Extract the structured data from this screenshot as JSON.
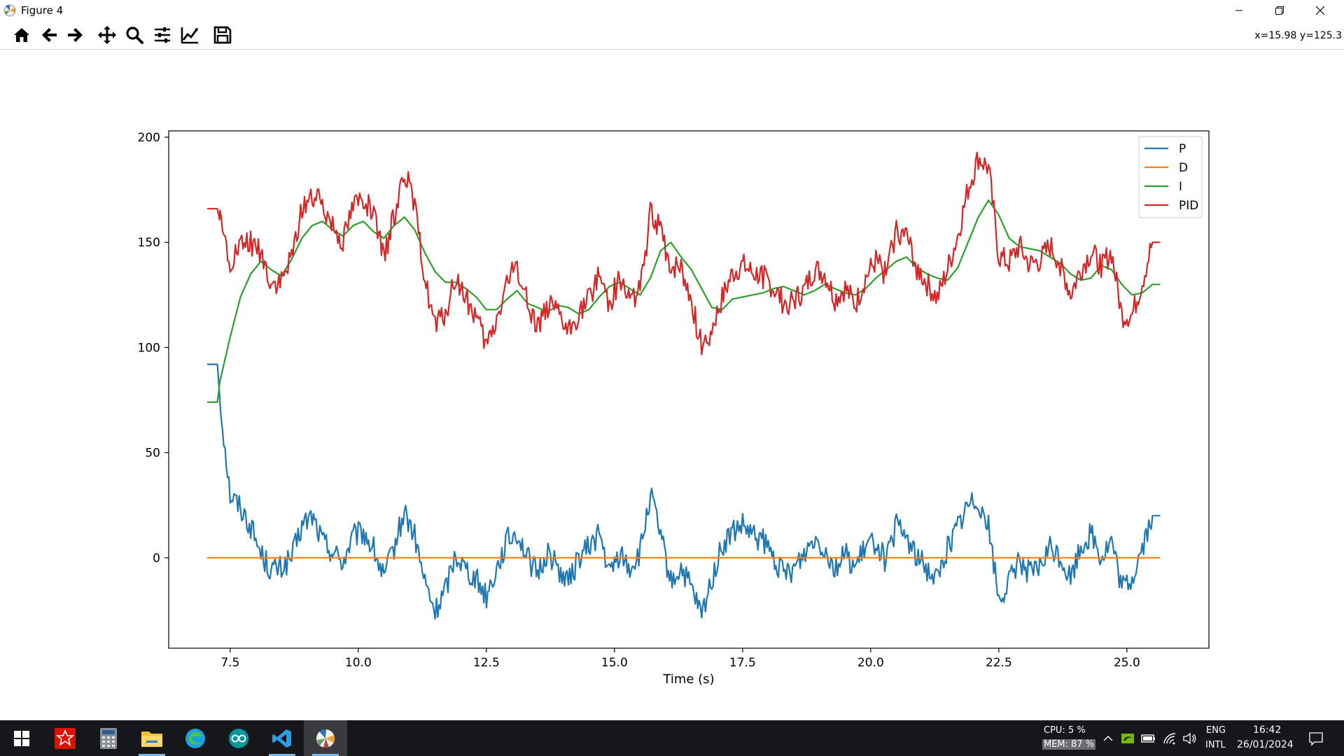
{
  "window": {
    "title": "Figure 4",
    "controls": [
      "minimize",
      "restore",
      "close"
    ]
  },
  "toolbar": {
    "buttons": [
      {
        "name": "home",
        "icon": "home-icon"
      },
      {
        "name": "back",
        "icon": "arrow-left-icon"
      },
      {
        "name": "forward",
        "icon": "arrow-right-icon"
      },
      {
        "name": "pan",
        "icon": "move-icon"
      },
      {
        "name": "zoom",
        "icon": "magnifier-icon"
      },
      {
        "name": "configure-subplots",
        "icon": "sliders-icon"
      },
      {
        "name": "edit-axis",
        "icon": "line-chart-icon"
      },
      {
        "name": "save",
        "icon": "floppy-disk-icon"
      }
    ],
    "coordinates": "x=15.98 y=125.3"
  },
  "chart_data": {
    "type": "line",
    "title": "",
    "xlabel": "Time (s)",
    "ylabel": "",
    "xlim": [
      6.3,
      26.6
    ],
    "ylim": [
      -43,
      203
    ],
    "xticks": [
      7.5,
      10.0,
      12.5,
      15.0,
      17.5,
      20.0,
      22.5,
      25.0
    ],
    "xtick_labels": [
      "7.5",
      "10.0",
      "12.5",
      "15.0",
      "17.5",
      "20.0",
      "22.5",
      "25.0"
    ],
    "yticks": [
      0,
      50,
      100,
      150,
      200
    ],
    "ytick_labels": [
      "0",
      "50",
      "100",
      "150",
      "200"
    ],
    "grid": false,
    "legend": "top-right",
    "x": [
      7.05,
      7.25,
      7.3,
      7.5,
      7.7,
      7.9,
      8.1,
      8.3,
      8.5,
      8.7,
      8.9,
      9.1,
      9.3,
      9.5,
      9.7,
      9.9,
      10.1,
      10.3,
      10.5,
      10.7,
      10.9,
      11.1,
      11.3,
      11.5,
      11.7,
      11.9,
      12.1,
      12.3,
      12.5,
      12.7,
      12.9,
      13.1,
      13.3,
      13.5,
      13.7,
      13.9,
      14.1,
      14.3,
      14.5,
      14.7,
      14.9,
      15.1,
      15.3,
      15.5,
      15.7,
      15.9,
      16.1,
      16.3,
      16.5,
      16.7,
      16.9,
      17.1,
      17.3,
      17.5,
      17.7,
      17.9,
      18.1,
      18.3,
      18.5,
      18.7,
      18.9,
      19.1,
      19.3,
      19.5,
      19.7,
      19.9,
      20.1,
      20.3,
      20.5,
      20.7,
      20.9,
      21.1,
      21.3,
      21.5,
      21.7,
      21.9,
      22.1,
      22.3,
      22.5,
      22.7,
      22.9,
      23.1,
      23.3,
      23.5,
      23.7,
      23.9,
      24.1,
      24.3,
      24.5,
      24.7,
      24.9,
      25.1,
      25.3,
      25.5,
      25.65
    ],
    "series": [
      {
        "name": "P",
        "color": "#1f77b4",
        "values": [
          92,
          92,
          75,
          30,
          24,
          15,
          2,
          -6,
          -5,
          0,
          15,
          20,
          8,
          3,
          -2,
          10,
          12,
          4,
          -10,
          5,
          22,
          10,
          -12,
          -26,
          -15,
          2,
          -5,
          -10,
          -18,
          -5,
          8,
          12,
          0,
          -8,
          3,
          -5,
          -12,
          0,
          5,
          12,
          -8,
          2,
          -5,
          2,
          30,
          10,
          -12,
          -5,
          -15,
          -28,
          -10,
          5,
          12,
          15,
          10,
          8,
          0,
          -8,
          -5,
          2,
          10,
          5,
          -5,
          2,
          -5,
          5,
          8,
          -2,
          15,
          10,
          0,
          -5,
          -10,
          5,
          15,
          25,
          28,
          15,
          -20,
          -12,
          0,
          -8,
          -5,
          5,
          0,
          -10,
          5,
          12,
          0,
          8,
          -15,
          -10,
          5,
          20,
          20
        ]
      },
      {
        "name": "D",
        "color": "#ff7f0e",
        "values": [
          0,
          0,
          0,
          0,
          0,
          0,
          0,
          0,
          0,
          0,
          0,
          0,
          0,
          0,
          0,
          0,
          0,
          0,
          0,
          0,
          0,
          0,
          0,
          0,
          0,
          0,
          0,
          0,
          0,
          0,
          0,
          0,
          0,
          0,
          0,
          0,
          0,
          0,
          0,
          0,
          0,
          0,
          0,
          0,
          0,
          0,
          0,
          0,
          0,
          0,
          0,
          0,
          0,
          0,
          0,
          0,
          0,
          0,
          0,
          0,
          0,
          0,
          0,
          0,
          0,
          0,
          0,
          0,
          0,
          0,
          0,
          0,
          0,
          0,
          0,
          0,
          0,
          0,
          0,
          0,
          0,
          0,
          0,
          0,
          0,
          0,
          0,
          0,
          0,
          0,
          0,
          0,
          0,
          0,
          0
        ]
      },
      {
        "name": "I",
        "color": "#2ca02c",
        "values": [
          74,
          74,
          84,
          105,
          124,
          135,
          141,
          137,
          134,
          142,
          152,
          158,
          160,
          156,
          153,
          158,
          160,
          155,
          152,
          158,
          162,
          156,
          145,
          136,
          131,
          131,
          128,
          124,
          118,
          118,
          123,
          127,
          121,
          119,
          117,
          120,
          119,
          116,
          118,
          124,
          129,
          131,
          128,
          125,
          133,
          146,
          150,
          143,
          137,
          128,
          119,
          118,
          123,
          124,
          125,
          126,
          128,
          129,
          127,
          125,
          127,
          130,
          128,
          126,
          125,
          128,
          133,
          137,
          141,
          143,
          138,
          135,
          133,
          132,
          138,
          150,
          162,
          170,
          163,
          152,
          148,
          147,
          146,
          143,
          140,
          135,
          132,
          133,
          139,
          137,
          130,
          125,
          126,
          130,
          130
        ]
      },
      {
        "name": "PID",
        "color": "#d62728",
        "values": [
          166,
          166,
          160,
          140,
          148,
          150,
          145,
          130,
          131,
          142,
          167,
          172,
          168,
          159,
          151,
          168,
          172,
          162,
          142,
          163,
          185,
          166,
          133,
          110,
          116,
          133,
          123,
          114,
          100,
          113,
          131,
          139,
          121,
          111,
          120,
          115,
          107,
          116,
          123,
          136,
          121,
          133,
          123,
          127,
          163,
          156,
          138,
          138,
          122,
          100,
          109,
          123,
          135,
          139,
          135,
          134,
          128,
          121,
          122,
          127,
          137,
          135,
          123,
          128,
          120,
          133,
          141,
          135,
          156,
          153,
          138,
          130,
          123,
          137,
          153,
          175,
          190,
          185,
          143,
          140,
          148,
          139,
          141,
          148,
          140,
          125,
          137,
          145,
          139,
          145,
          115,
          115,
          131,
          150,
          150
        ]
      }
    ]
  },
  "taskbar": {
    "apps": [
      {
        "name": "start",
        "icon": "windows-icon"
      },
      {
        "name": "wolfram",
        "icon": "wolfram-icon"
      },
      {
        "name": "calculator",
        "icon": "calculator-icon"
      },
      {
        "name": "file-explorer",
        "icon": "folder-icon"
      },
      {
        "name": "edge",
        "icon": "edge-icon"
      },
      {
        "name": "arduino",
        "icon": "arduino-icon"
      },
      {
        "name": "vscode",
        "icon": "vscode-icon"
      },
      {
        "name": "matplotlib",
        "icon": "matplotlib-icon"
      }
    ],
    "cpu": "CPU: 5 %",
    "mem": "MEM: 87 %",
    "lang_top": "ENG",
    "lang_bottom": "INTL",
    "time": "16:42",
    "date": "26/01/2024"
  }
}
